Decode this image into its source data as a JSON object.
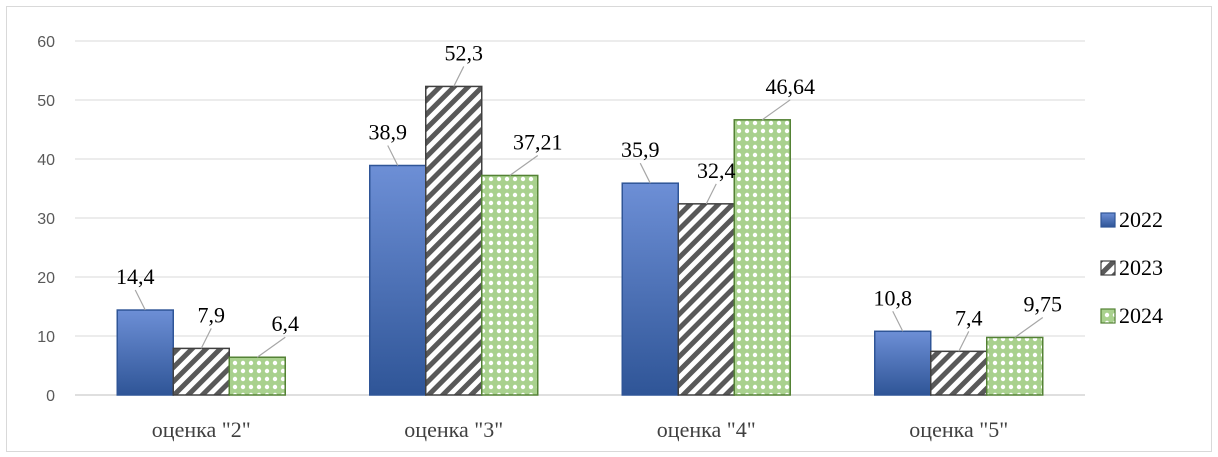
{
  "chart_data": {
    "type": "bar",
    "title": "",
    "xlabel": "",
    "ylabel": "",
    "categories": [
      "оценка \"2\"",
      "оценка \"3\"",
      "оценка \"4\"",
      "оценка \"5\""
    ],
    "series": [
      {
        "name": "2022",
        "values": [
          14.4,
          38.9,
          35.9,
          10.8
        ],
        "labels": [
          "14,4",
          "38,9",
          "35,9",
          "10,8"
        ],
        "color": "#4472c4",
        "pattern": "solid-gradient"
      },
      {
        "name": "2023",
        "values": [
          7.9,
          52.3,
          32.4,
          7.4
        ],
        "labels": [
          "7,9",
          "52,3",
          "32,4",
          "7,4"
        ],
        "color": "#595959",
        "pattern": "diagonal-stripes"
      },
      {
        "name": "2024",
        "values": [
          6.4,
          37.21,
          46.64,
          9.75
        ],
        "labels": [
          "6,4",
          "37,21",
          "46,64",
          "9,75"
        ],
        "color": "#70ad47",
        "pattern": "dotted-grid"
      }
    ],
    "ylim": [
      0,
      60
    ],
    "yticks": [
      "0",
      "10",
      "20",
      "30",
      "40",
      "50",
      "60"
    ],
    "grid": true,
    "legend": "right"
  }
}
